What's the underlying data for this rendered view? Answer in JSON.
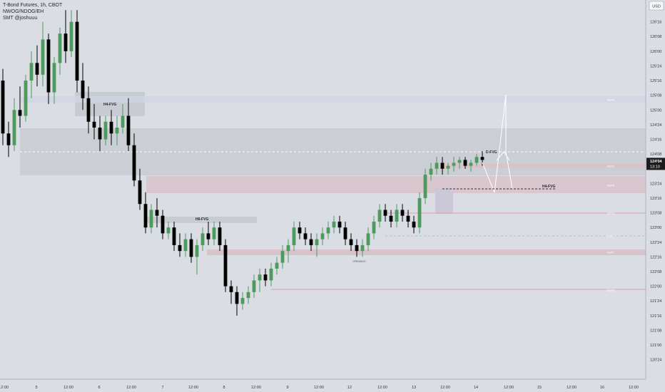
{
  "header": {
    "title": "T-Bond Futures, 1h, CBOT",
    "indicator": "NWOG/NDOG/EH",
    "author": "SMT @joshuuu"
  },
  "price_axis": {
    "currency": "USD",
    "current_price": "124'04",
    "countdown": "13:10"
  },
  "colors": {
    "background": "#dadde4",
    "up_candle": "#4e9a5c",
    "down_candle": "#000000",
    "gap_zone": "#d8c3cb",
    "fvg_zone": "#c8cbd2",
    "projection": "#ffffff"
  },
  "chart_data": {
    "type": "candlestick",
    "y_axis": {
      "unit": "32nds",
      "ticks": [
        "126'16",
        "126'08",
        "126'00",
        "125'24",
        "125'16",
        "125'08",
        "125'00",
        "124'24",
        "124'16",
        "124'08",
        "124'00",
        "123'24",
        "123'16",
        "123'08",
        "123'00",
        "122'24",
        "122'16",
        "122'08",
        "122'00",
        "121'24",
        "121'16",
        "121'08",
        "121'00",
        "120'24"
      ],
      "ylim": [
        "120'20",
        "126'24"
      ]
    },
    "x_axis": {
      "ticks": [
        "12:00",
        "5",
        "12:00",
        "6",
        "12:00",
        "7",
        "12:00",
        "8",
        "12:00",
        "9",
        "12:00",
        "12",
        "12:00",
        "13",
        "12:00",
        "14",
        "12:00",
        "15",
        "12:00",
        "16",
        "12:00"
      ]
    },
    "annotations": {
      "fvg_labels": [
        "H4-FVG",
        "H6-FVG",
        "D-FVG",
        "H4-FVG"
      ],
      "small_label": "OPENINGS",
      "zone_tags": [
        "08/08",
        "08/13",
        "08/06",
        "08/13",
        "08/11",
        "08/07",
        "08/08"
      ]
    },
    "candles": [
      [
        125.5,
        125.7,
        124.4,
        124.6
      ],
      [
        124.6,
        124.8,
        124.2,
        124.4
      ],
      [
        124.4,
        125.2,
        124.3,
        125.0
      ],
      [
        125.0,
        125.4,
        124.7,
        124.9
      ],
      [
        124.9,
        125.6,
        124.8,
        125.5
      ],
      [
        125.5,
        126.0,
        125.2,
        125.8
      ],
      [
        125.8,
        126.1,
        125.4,
        125.6
      ],
      [
        125.6,
        126.5,
        125.4,
        126.2
      ],
      [
        126.2,
        126.3,
        125.1,
        125.3
      ],
      [
        125.3,
        125.9,
        125.1,
        125.8
      ],
      [
        125.8,
        126.4,
        125.6,
        126.3
      ],
      [
        126.3,
        126.7,
        125.8,
        126.0
      ],
      [
        126.0,
        126.7,
        125.9,
        126.5
      ],
      [
        126.5,
        126.7,
        125.3,
        125.5
      ],
      [
        125.5,
        125.8,
        125.0,
        125.2
      ],
      [
        125.2,
        125.4,
        124.6,
        124.8
      ],
      [
        124.8,
        125.1,
        124.5,
        124.7
      ],
      [
        124.7,
        124.9,
        124.3,
        124.5
      ],
      [
        124.5,
        124.9,
        124.4,
        124.8
      ],
      [
        124.8,
        125.0,
        124.4,
        124.6
      ],
      [
        124.6,
        124.9,
        124.4,
        124.7
      ],
      [
        124.7,
        125.1,
        124.6,
        124.9
      ],
      [
        124.9,
        125.2,
        124.3,
        124.4
      ],
      [
        124.4,
        124.6,
        123.7,
        123.8
      ],
      [
        123.8,
        124.0,
        123.3,
        123.4
      ],
      [
        123.4,
        123.6,
        122.9,
        123.0
      ],
      [
        123.0,
        123.4,
        122.9,
        123.3
      ],
      [
        123.3,
        123.5,
        123.0,
        123.2
      ],
      [
        123.2,
        123.3,
        122.8,
        122.9
      ],
      [
        122.9,
        123.1,
        122.8,
        123.0
      ],
      [
        123.0,
        123.1,
        122.6,
        122.7
      ],
      [
        122.7,
        122.9,
        122.5,
        122.6
      ],
      [
        122.6,
        122.9,
        122.5,
        122.8
      ],
      [
        122.8,
        122.9,
        122.4,
        122.5
      ],
      [
        122.5,
        122.8,
        122.2,
        122.7
      ],
      [
        122.7,
        123.0,
        122.6,
        122.9
      ],
      [
        122.9,
        123.1,
        122.7,
        122.8
      ],
      [
        122.8,
        123.1,
        122.7,
        123.0
      ],
      [
        123.0,
        123.1,
        122.6,
        122.7
      ],
      [
        122.7,
        122.8,
        121.9,
        122.0
      ],
      [
        122.0,
        122.1,
        121.7,
        121.9
      ],
      [
        121.9,
        122.0,
        121.5,
        121.7
      ],
      [
        121.7,
        121.9,
        121.6,
        121.8
      ],
      [
        121.8,
        122.0,
        121.7,
        121.9
      ],
      [
        121.9,
        122.2,
        121.8,
        122.1
      ],
      [
        122.1,
        122.3,
        121.9,
        122.2
      ],
      [
        122.2,
        122.3,
        122.0,
        122.1
      ],
      [
        122.1,
        122.4,
        122.0,
        122.3
      ],
      [
        122.3,
        122.5,
        122.2,
        122.4
      ],
      [
        122.4,
        122.7,
        122.3,
        122.6
      ],
      [
        122.6,
        122.8,
        122.4,
        122.7
      ],
      [
        122.7,
        123.1,
        122.6,
        123.0
      ],
      [
        123.0,
        123.1,
        122.8,
        122.9
      ],
      [
        122.9,
        123.0,
        122.7,
        122.8
      ],
      [
        122.8,
        122.9,
        122.6,
        122.7
      ],
      [
        122.7,
        122.9,
        122.5,
        122.8
      ],
      [
        122.8,
        123.0,
        122.7,
        122.9
      ],
      [
        122.9,
        123.1,
        122.8,
        123.0
      ],
      [
        123.0,
        123.2,
        122.9,
        123.1
      ],
      [
        123.1,
        123.2,
        122.9,
        123.0
      ],
      [
        123.0,
        123.1,
        122.7,
        122.8
      ],
      [
        122.8,
        122.9,
        122.6,
        122.7
      ],
      [
        122.7,
        122.8,
        122.5,
        122.6
      ],
      [
        122.6,
        122.8,
        122.5,
        122.7
      ],
      [
        122.7,
        123.0,
        122.6,
        122.9
      ],
      [
        122.9,
        123.2,
        122.8,
        123.1
      ],
      [
        123.1,
        123.4,
        123.0,
        123.3
      ],
      [
        123.3,
        123.4,
        123.1,
        123.2
      ],
      [
        123.2,
        123.3,
        123.0,
        123.1
      ],
      [
        123.1,
        123.4,
        123.0,
        123.3
      ],
      [
        123.3,
        123.4,
        123.1,
        123.2
      ],
      [
        123.2,
        123.3,
        123.0,
        123.1
      ],
      [
        123.1,
        123.2,
        122.9,
        123.0
      ],
      [
        123.0,
        123.6,
        122.9,
        123.5
      ],
      [
        123.5,
        124.0,
        123.4,
        123.9
      ],
      [
        123.9,
        124.1,
        123.8,
        124.0
      ],
      [
        124.0,
        124.2,
        123.9,
        124.1
      ],
      [
        124.1,
        124.2,
        123.9,
        124.0
      ],
      [
        124.0,
        124.1,
        123.9,
        124.05
      ],
      [
        124.05,
        124.2,
        123.95,
        124.1
      ],
      [
        124.1,
        124.2,
        124.0,
        124.15
      ],
      [
        124.15,
        124.2,
        124.0,
        124.05
      ],
      [
        124.05,
        124.15,
        123.95,
        124.1
      ],
      [
        124.1,
        124.25,
        124.05,
        124.2
      ],
      [
        124.2,
        124.3,
        124.05,
        124.15
      ]
    ]
  }
}
